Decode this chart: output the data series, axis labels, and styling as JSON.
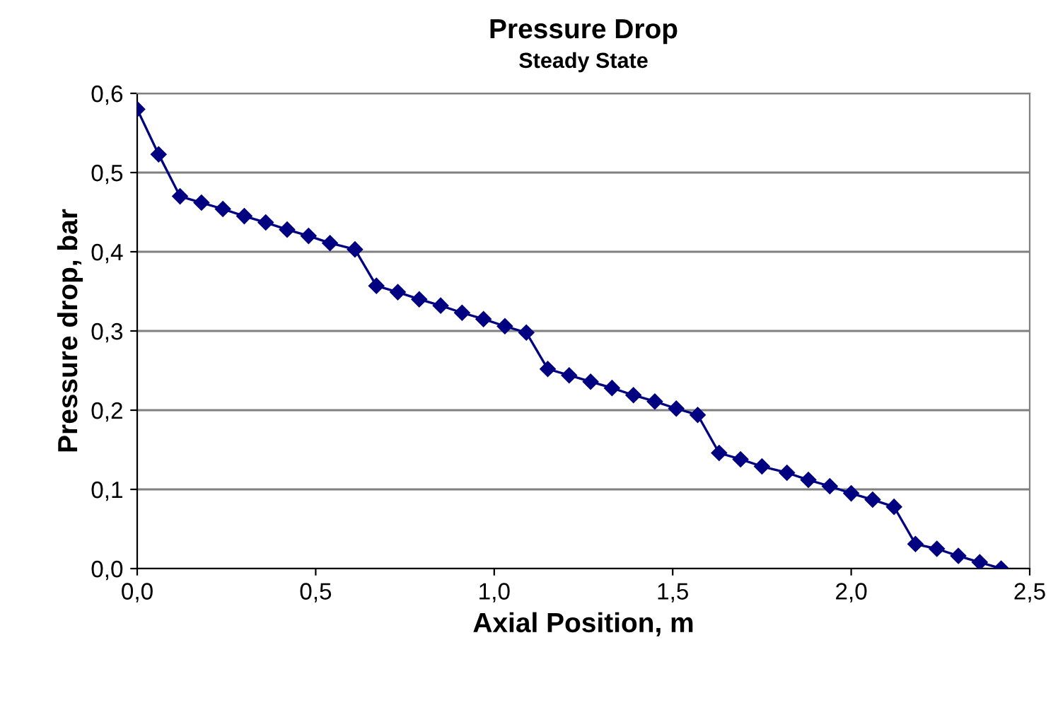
{
  "chart_data": {
    "type": "line",
    "title": "Pressure Drop",
    "subtitle": "Steady State",
    "xlabel": "Axial Position, m",
    "ylabel": "Pressure drop, bar",
    "x": [
      0,
      0.06,
      0.12,
      0.18,
      0.24,
      0.3,
      0.36,
      0.42,
      0.48,
      0.54,
      0.61,
      0.67,
      0.73,
      0.79,
      0.85,
      0.91,
      0.97,
      1.03,
      1.09,
      1.15,
      1.21,
      1.27,
      1.33,
      1.39,
      1.45,
      1.51,
      1.57,
      1.63,
      1.69,
      1.75,
      1.82,
      1.88,
      1.94,
      2.0,
      2.06,
      2.12,
      2.18,
      2.24,
      2.3,
      2.36,
      2.42
    ],
    "series": [
      {
        "color": "#000080",
        "values": [
          0.58,
          0.523,
          0.47,
          0.462,
          0.454,
          0.445,
          0.437,
          0.428,
          0.42,
          0.411,
          0.403,
          0.357,
          0.349,
          0.34,
          0.332,
          0.323,
          0.315,
          0.306,
          0.298,
          0.252,
          0.244,
          0.236,
          0.228,
          0.219,
          0.211,
          0.202,
          0.194,
          0.146,
          0.138,
          0.129,
          0.121,
          0.112,
          0.104,
          0.095,
          0.087,
          0.078,
          0.031,
          0.025,
          0.016,
          0.008,
          0.0
        ]
      }
    ],
    "xlim": [
      0,
      2.5
    ],
    "ylim": [
      0,
      0.6
    ],
    "xticks": [
      {
        "value": 0,
        "label": "0,0"
      },
      {
        "value": 0.5,
        "label": "0,5"
      },
      {
        "value": 1.0,
        "label": "1,0"
      },
      {
        "value": 1.5,
        "label": "1,5"
      },
      {
        "value": 2.0,
        "label": "2,0"
      },
      {
        "value": 2.5,
        "label": "2,5"
      }
    ],
    "yticks": [
      {
        "value": 0,
        "label": "0,0"
      },
      {
        "value": 0.1,
        "label": "0,1"
      },
      {
        "value": 0.2,
        "label": "0,2"
      },
      {
        "value": 0.3,
        "label": "0,3"
      },
      {
        "value": 0.4,
        "label": "0,4"
      },
      {
        "value": 0.5,
        "label": "0,5"
      },
      {
        "value": 0.6,
        "label": "0,6"
      }
    ],
    "grid": "y",
    "marker": "diamond",
    "line_style": "solid"
  }
}
